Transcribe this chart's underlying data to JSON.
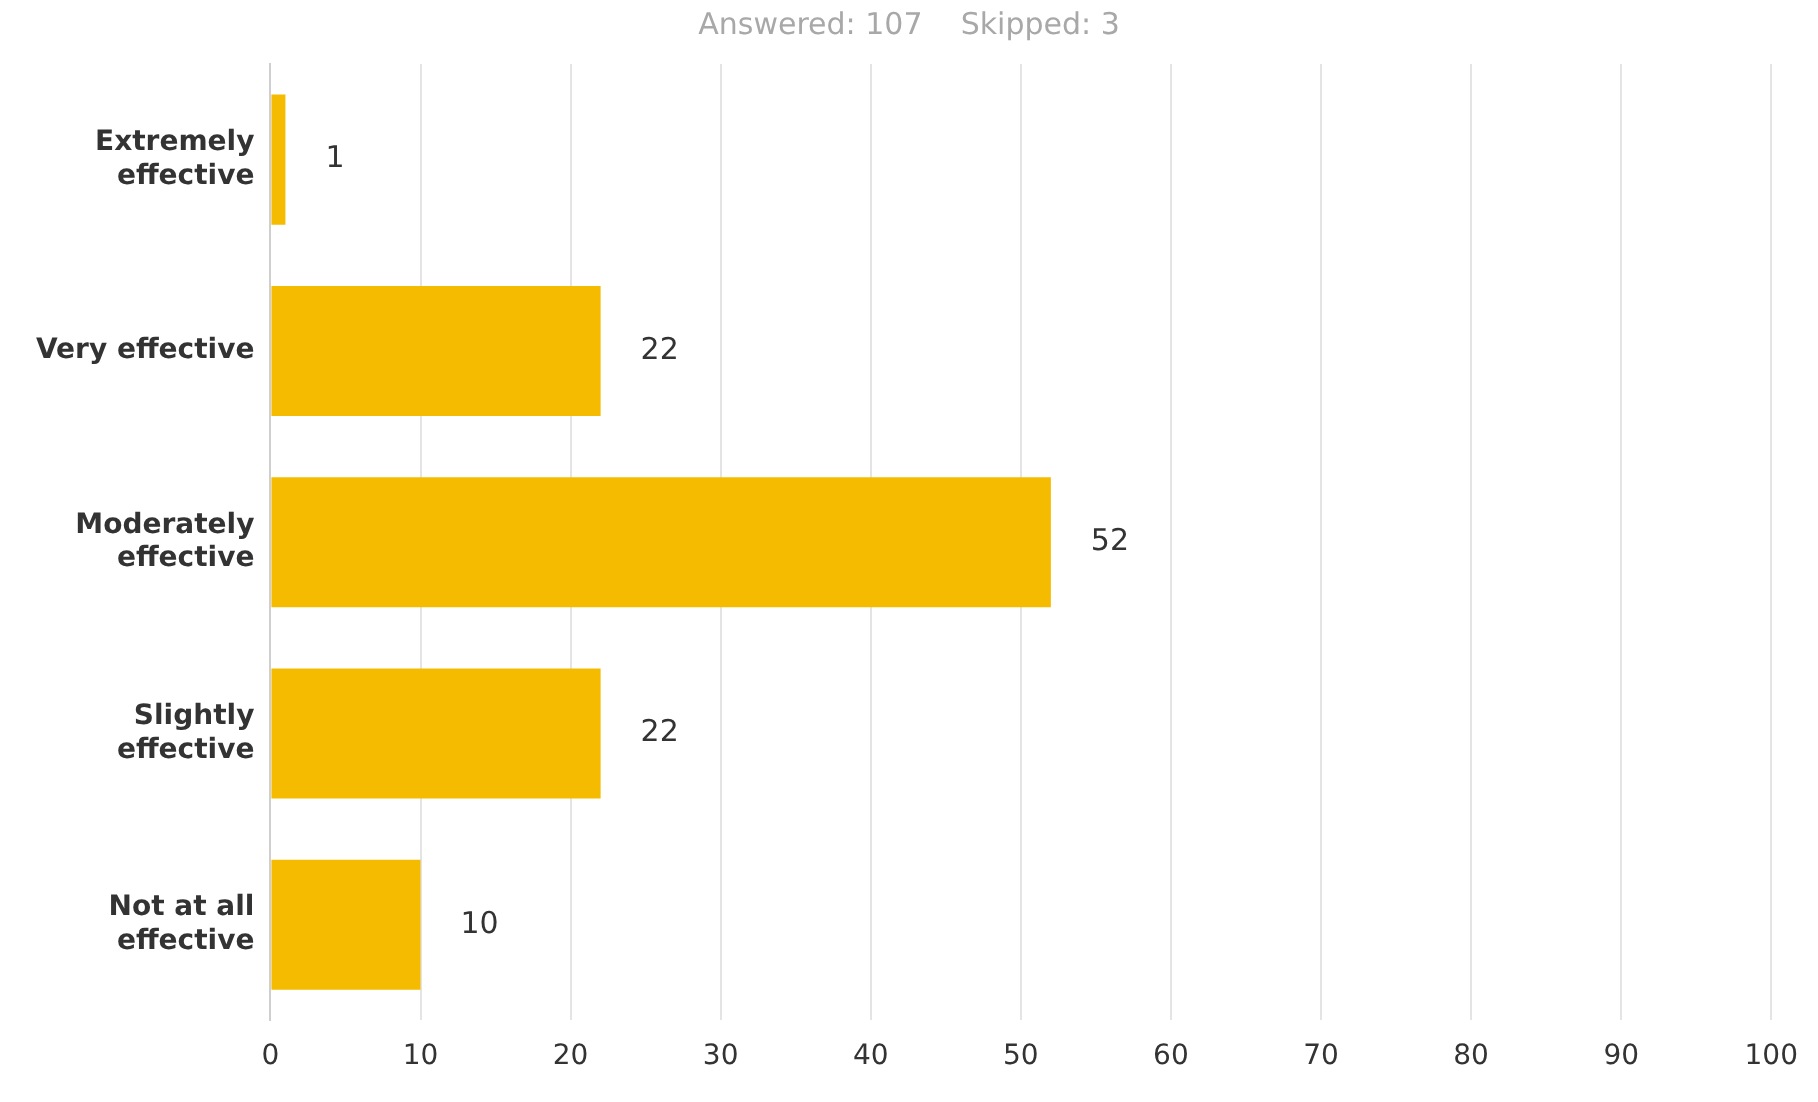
{
  "chart_data": {
    "type": "bar",
    "orientation": "horizontal",
    "title": "Answered: 107    Skipped: 3",
    "categories": [
      "Extremely\neffective",
      "Very effective",
      "Moderately\neffective",
      "Slightly\neffective",
      "Not at all\neffective"
    ],
    "values": [
      1,
      22,
      52,
      22,
      10
    ],
    "color": "#f5bb00",
    "xlim": [
      0,
      100
    ],
    "xticks": [
      0,
      10,
      20,
      30,
      40,
      50,
      60,
      70,
      80,
      90,
      100
    ],
    "grid": "x",
    "data_labels": true,
    "legend": false
  }
}
